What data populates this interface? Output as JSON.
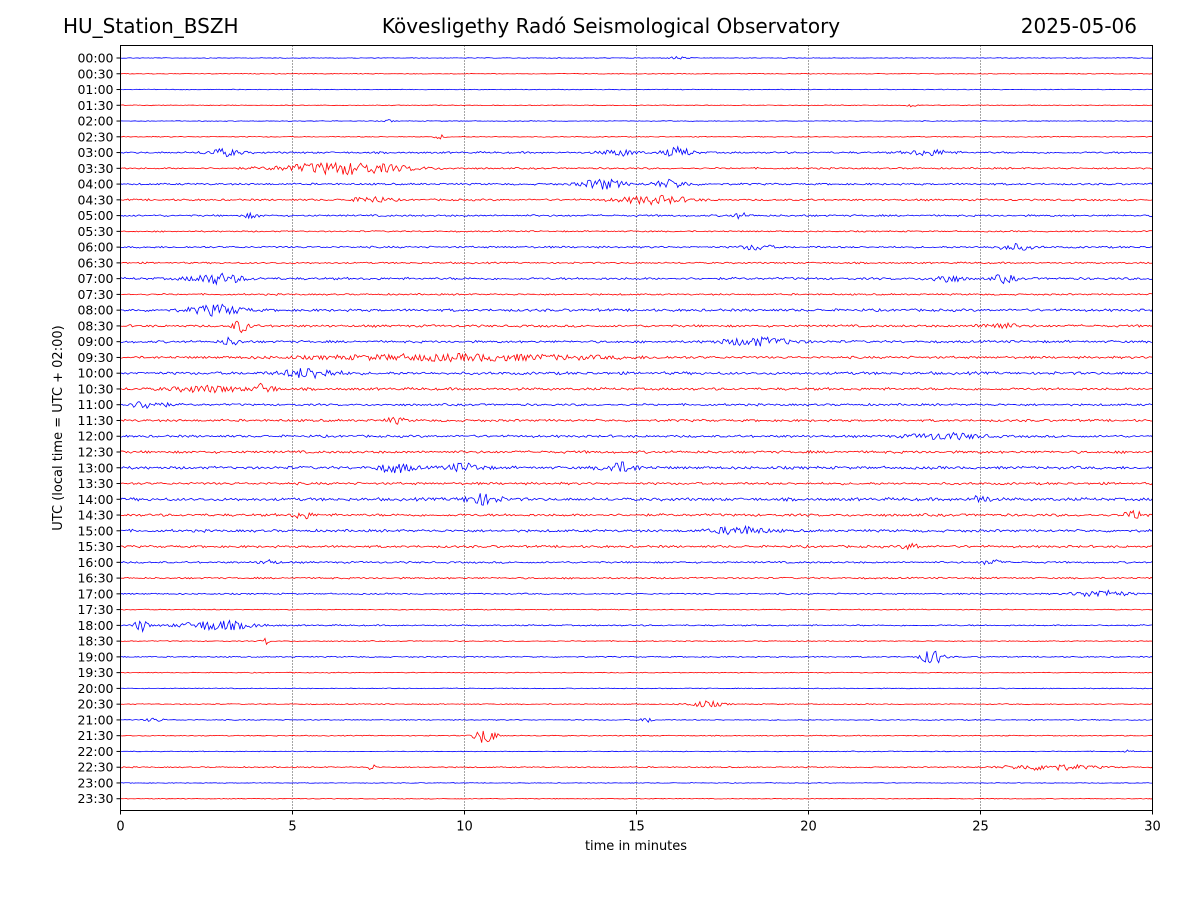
{
  "header": {
    "station": "HU_Station_BSZH",
    "title": "Kövesligethy Radó Seismological Observatory",
    "date": "2025-05-06"
  },
  "chart_data": {
    "type": "line",
    "subtype": "helicorder",
    "xlabel": "time in minutes",
    "ylabel": "UTC (local time = UTC + 02:00)",
    "xlim": [
      0,
      30
    ],
    "x_ticks": [
      "0",
      "5",
      "10",
      "15",
      "20",
      "25",
      "30"
    ],
    "row_labels": [
      "00:00",
      "00:30",
      "01:00",
      "01:30",
      "02:00",
      "02:30",
      "03:00",
      "03:30",
      "04:00",
      "04:30",
      "05:00",
      "05:30",
      "06:00",
      "06:30",
      "07:00",
      "07:30",
      "08:00",
      "08:30",
      "09:00",
      "09:30",
      "10:00",
      "10:30",
      "11:00",
      "11:30",
      "12:00",
      "12:30",
      "13:00",
      "13:30",
      "14:00",
      "14:30",
      "15:00",
      "15:30",
      "16:00",
      "16:30",
      "17:00",
      "17:30",
      "18:00",
      "18:30",
      "19:00",
      "19:30",
      "20:00",
      "20:30",
      "21:00",
      "21:30",
      "22:00",
      "22:30",
      "23:00",
      "23:30"
    ],
    "row_colors": [
      "#0000ff",
      "#ff0000"
    ],
    "noise_levels": [
      0.3,
      0.3,
      0.3,
      0.3,
      0.3,
      0.35,
      0.8,
      0.7,
      0.8,
      0.8,
      0.8,
      0.6,
      0.8,
      0.7,
      1.0,
      0.7,
      1.1,
      1.0,
      1.0,
      1.0,
      1.2,
      1.1,
      0.9,
      1.0,
      1.0,
      1.1,
      1.2,
      1.0,
      1.3,
      1.1,
      1.1,
      1.0,
      0.8,
      0.7,
      0.6,
      0.4,
      0.6,
      0.4,
      0.5,
      0.35,
      0.35,
      0.4,
      0.4,
      0.4,
      0.35,
      0.5,
      0.3,
      0.3
    ],
    "events": [
      {
        "row": 0,
        "minute": 16.2,
        "amp": 1.5,
        "dur": 0.5
      },
      {
        "row": 3,
        "minute": 23.0,
        "amp": 1.5,
        "dur": 0.3
      },
      {
        "row": 4,
        "minute": 7.8,
        "amp": 1.5,
        "dur": 0.2
      },
      {
        "row": 5,
        "minute": 9.3,
        "amp": 2.0,
        "dur": 0.3
      },
      {
        "row": 6,
        "minute": 3.0,
        "amp": 3.5,
        "dur": 1.0
      },
      {
        "row": 6,
        "minute": 14.5,
        "amp": 3.0,
        "dur": 1.0
      },
      {
        "row": 6,
        "minute": 16.2,
        "amp": 5.0,
        "dur": 0.8
      },
      {
        "row": 6,
        "minute": 23.5,
        "amp": 3.0,
        "dur": 1.2
      },
      {
        "row": 7,
        "minute": 6.5,
        "amp": 6.0,
        "dur": 3.5
      },
      {
        "row": 8,
        "minute": 14.0,
        "amp": 5.0,
        "dur": 1.2
      },
      {
        "row": 8,
        "minute": 16.0,
        "amp": 4.0,
        "dur": 1.0
      },
      {
        "row": 9,
        "minute": 7.3,
        "amp": 3.0,
        "dur": 1.0
      },
      {
        "row": 9,
        "minute": 15.5,
        "amp": 4.0,
        "dur": 2.0
      },
      {
        "row": 10,
        "minute": 3.8,
        "amp": 2.0,
        "dur": 0.5
      },
      {
        "row": 10,
        "minute": 18.0,
        "amp": 2.5,
        "dur": 0.5
      },
      {
        "row": 12,
        "minute": 18.5,
        "amp": 3.0,
        "dur": 0.8
      },
      {
        "row": 12,
        "minute": 26.0,
        "amp": 3.0,
        "dur": 1.0
      },
      {
        "row": 14,
        "minute": 2.8,
        "amp": 5.0,
        "dur": 1.5
      },
      {
        "row": 14,
        "minute": 24.0,
        "amp": 4.0,
        "dur": 0.8
      },
      {
        "row": 14,
        "minute": 25.7,
        "amp": 4.0,
        "dur": 0.6
      },
      {
        "row": 16,
        "minute": 2.8,
        "amp": 5.0,
        "dur": 1.5
      },
      {
        "row": 17,
        "minute": 3.5,
        "amp": 6.0,
        "dur": 0.5
      },
      {
        "row": 17,
        "minute": 25.5,
        "amp": 3.0,
        "dur": 1.0
      },
      {
        "row": 18,
        "minute": 3.2,
        "amp": 4.0,
        "dur": 0.5
      },
      {
        "row": 18,
        "minute": 18.5,
        "amp": 4.0,
        "dur": 2.0
      },
      {
        "row": 19,
        "minute": 10.0,
        "amp": 3.0,
        "dur": 8.0
      },
      {
        "row": 20,
        "minute": 5.5,
        "amp": 5.0,
        "dur": 1.5
      },
      {
        "row": 21,
        "minute": 4.2,
        "amp": 6.0,
        "dur": 0.5
      },
      {
        "row": 21,
        "minute": 2.5,
        "amp": 3.0,
        "dur": 2.0
      },
      {
        "row": 22,
        "minute": 0.8,
        "amp": 4.0,
        "dur": 1.0
      },
      {
        "row": 23,
        "minute": 8.0,
        "amp": 3.0,
        "dur": 0.5
      },
      {
        "row": 24,
        "minute": 24.0,
        "amp": 3.0,
        "dur": 2.0
      },
      {
        "row": 26,
        "minute": 8.0,
        "amp": 4.5,
        "dur": 1.0
      },
      {
        "row": 26,
        "minute": 10.0,
        "amp": 4.0,
        "dur": 1.0
      },
      {
        "row": 26,
        "minute": 14.5,
        "amp": 5.0,
        "dur": 1.0
      },
      {
        "row": 28,
        "minute": 10.5,
        "amp": 5.0,
        "dur": 1.0
      },
      {
        "row": 28,
        "minute": 25.0,
        "amp": 4.0,
        "dur": 0.5
      },
      {
        "row": 29,
        "minute": 5.3,
        "amp": 4.0,
        "dur": 0.5
      },
      {
        "row": 29,
        "minute": 29.5,
        "amp": 4.0,
        "dur": 0.6
      },
      {
        "row": 30,
        "minute": 18.0,
        "amp": 4.0,
        "dur": 1.5
      },
      {
        "row": 31,
        "minute": 23.0,
        "amp": 3.0,
        "dur": 0.5
      },
      {
        "row": 32,
        "minute": 25.3,
        "amp": 3.0,
        "dur": 0.5
      },
      {
        "row": 32,
        "minute": 4.3,
        "amp": 2.5,
        "dur": 0.5
      },
      {
        "row": 34,
        "minute": 28.5,
        "amp": 3.5,
        "dur": 1.5
      },
      {
        "row": 36,
        "minute": 0.6,
        "amp": 6.0,
        "dur": 0.4
      },
      {
        "row": 36,
        "minute": 2.8,
        "amp": 5.0,
        "dur": 2.0
      },
      {
        "row": 37,
        "minute": 4.2,
        "amp": 4.0,
        "dur": 0.2
      },
      {
        "row": 38,
        "minute": 23.6,
        "amp": 8.0,
        "dur": 0.6
      },
      {
        "row": 41,
        "minute": 17.0,
        "amp": 3.0,
        "dur": 1.0
      },
      {
        "row": 42,
        "minute": 1.0,
        "amp": 2.0,
        "dur": 0.5
      },
      {
        "row": 42,
        "minute": 15.3,
        "amp": 3.0,
        "dur": 0.3
      },
      {
        "row": 43,
        "minute": 10.6,
        "amp": 8.0,
        "dur": 0.6
      },
      {
        "row": 44,
        "minute": 29.3,
        "amp": 2.0,
        "dur": 0.2
      },
      {
        "row": 45,
        "minute": 7.3,
        "amp": 3.5,
        "dur": 0.2
      },
      {
        "row": 45,
        "minute": 27.0,
        "amp": 3.0,
        "dur": 2.5
      }
    ]
  }
}
